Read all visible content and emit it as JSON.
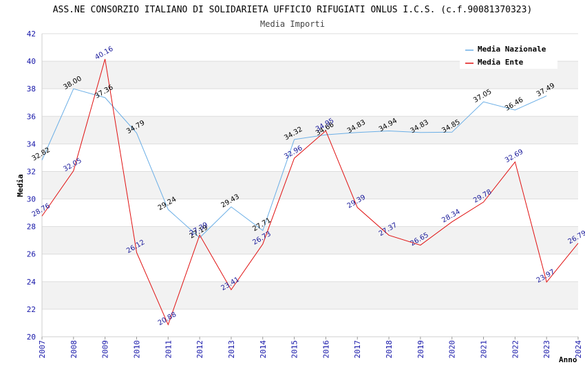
{
  "title": "ASS.NE CONSORZIO ITALIANO DI SOLIDARIETA UFFICIO RIFUGIATI ONLUS I.C.S. (c.f.90081370323)",
  "subtitle": "Media Importi",
  "legend": {
    "items": [
      "Media Nazionale",
      "Media Ente"
    ],
    "placement": "top-right"
  },
  "colors": {
    "nazionale": "#6aaee6",
    "ente": "#e01010",
    "label_nazionale": "#000000",
    "label_ente": "#1a1a9a",
    "band": "#f2f2f2",
    "grid": "#dddddd",
    "tick": "#1515a8"
  },
  "chart_data": {
    "type": "line",
    "xlabel": "Anno",
    "ylabel": "Media",
    "ylim": [
      20,
      42
    ],
    "yticks": [
      20,
      22,
      24,
      26,
      28,
      30,
      32,
      34,
      36,
      38,
      40,
      42
    ],
    "x": [
      2007,
      2008,
      2009,
      2010,
      2011,
      2012,
      2013,
      2014,
      2015,
      2016,
      2017,
      2018,
      2019,
      2020,
      2021,
      2022,
      2023,
      2024
    ],
    "grid": true,
    "series": [
      {
        "name": "Media Nazionale",
        "x": [
          2007,
          2008,
          2009,
          2010,
          2011,
          2012,
          2013,
          2014,
          2015,
          2016,
          2017,
          2018,
          2019,
          2020,
          2021,
          2022,
          2023
        ],
        "values": [
          32.82,
          38.0,
          37.36,
          34.79,
          29.24,
          27.19,
          29.43,
          27.71,
          34.32,
          34.66,
          34.83,
          34.94,
          34.83,
          34.85,
          37.05,
          36.46,
          37.49
        ],
        "labels": [
          "32.82",
          "38.00",
          "37.36",
          "34.79",
          "29.24",
          "27.19",
          "29.43",
          "27.71",
          "34.32",
          "34.66",
          "34.83",
          "34.94",
          "34.83",
          "34.85",
          "37.05",
          "36.46",
          "37.49"
        ]
      },
      {
        "name": "Media Ente",
        "x": [
          2007,
          2008,
          2009,
          2010,
          2011,
          2012,
          2013,
          2014,
          2015,
          2016,
          2017,
          2018,
          2019,
          2020,
          2021,
          2022,
          2023,
          2024
        ],
        "values": [
          28.76,
          32.05,
          40.16,
          26.12,
          20.88,
          27.39,
          23.41,
          26.73,
          32.96,
          34.95,
          29.39,
          27.37,
          26.65,
          28.34,
          29.78,
          32.69,
          23.97,
          26.79
        ],
        "labels": [
          "28.76",
          "32.05",
          "40.16",
          "26.12",
          "20.88",
          "27.39",
          "23.41",
          "26.73",
          "32.96",
          "34.95",
          "29.39",
          "27.37",
          "26.65",
          "28.34",
          "29.78",
          "32.69",
          "23.97",
          "26.79"
        ]
      }
    ]
  }
}
